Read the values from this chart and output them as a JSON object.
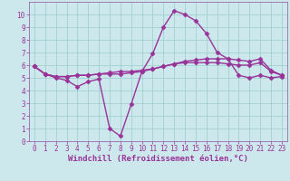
{
  "xlabel": "Windchill (Refroidissement éolien,°C)",
  "xlim": [
    -0.5,
    23.5
  ],
  "ylim": [
    0,
    11
  ],
  "xticks": [
    0,
    1,
    2,
    3,
    4,
    5,
    6,
    7,
    8,
    9,
    10,
    11,
    12,
    13,
    14,
    15,
    16,
    17,
    18,
    19,
    20,
    21,
    22,
    23
  ],
  "yticks": [
    0,
    1,
    2,
    3,
    4,
    5,
    6,
    7,
    8,
    9,
    10
  ],
  "bg_color": "#cce8ec",
  "line_color": "#993399",
  "line1_x": [
    0,
    1,
    2,
    3,
    4,
    5,
    6,
    7,
    8,
    9,
    10,
    11,
    12,
    13,
    14,
    15,
    16,
    17,
    18,
    19,
    20,
    21,
    22,
    23
  ],
  "line1_y": [
    5.9,
    5.3,
    5.0,
    4.8,
    4.3,
    4.7,
    4.9,
    1.0,
    0.4,
    2.9,
    5.5,
    6.9,
    9.0,
    10.3,
    10.0,
    9.5,
    8.5,
    7.0,
    6.5,
    5.2,
    5.0,
    5.2,
    5.0,
    5.1
  ],
  "line2_x": [
    0,
    1,
    2,
    3,
    4,
    5,
    6,
    7,
    8,
    9,
    10,
    11,
    12,
    13,
    14,
    15,
    16,
    17,
    18,
    19,
    20,
    21,
    22,
    23
  ],
  "line2_y": [
    5.9,
    5.3,
    5.1,
    5.1,
    5.2,
    5.2,
    5.3,
    5.3,
    5.3,
    5.4,
    5.5,
    5.7,
    5.9,
    6.1,
    6.2,
    6.2,
    6.2,
    6.2,
    6.1,
    6.0,
    6.0,
    6.2,
    5.5,
    5.2
  ],
  "line3_x": [
    0,
    1,
    2,
    3,
    4,
    5,
    6,
    7,
    8,
    9,
    10,
    11,
    12,
    13,
    14,
    15,
    16,
    17,
    18,
    19,
    20,
    21,
    22,
    23
  ],
  "line3_y": [
    5.9,
    5.3,
    5.1,
    5.1,
    5.2,
    5.2,
    5.3,
    5.4,
    5.5,
    5.5,
    5.6,
    5.7,
    5.9,
    6.1,
    6.3,
    6.4,
    6.5,
    6.5,
    6.5,
    6.4,
    6.3,
    6.5,
    5.6,
    5.2
  ],
  "marker": "D",
  "markersize": 2.5,
  "linewidth": 1.0,
  "tick_fontsize": 5.5,
  "label_fontsize": 6.5,
  "grid_color": "#99cccc",
  "grid_linewidth": 0.5,
  "spine_color": "#9966aa"
}
